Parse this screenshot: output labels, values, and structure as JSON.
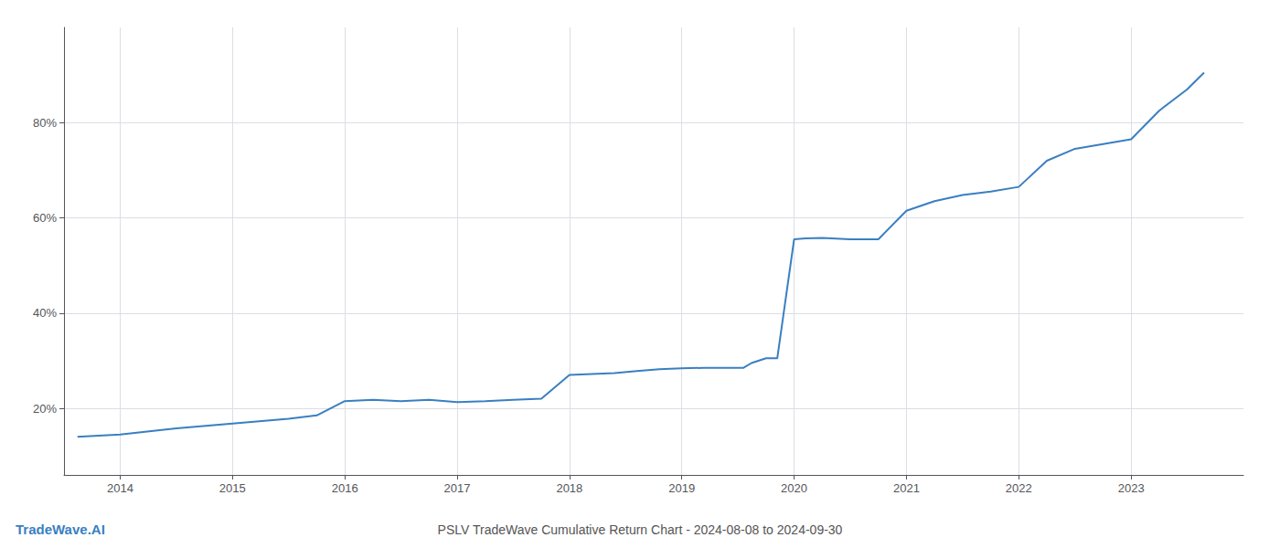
{
  "chart_data": {
    "type": "line",
    "title": "PSLV TradeWave Cumulative Return Chart - 2024-08-08 to 2024-09-30",
    "annotations": [
      "TradeWave.AI"
    ],
    "x": [
      2013.62,
      2014.0,
      2014.5,
      2015.0,
      2015.5,
      2015.75,
      2016.0,
      2016.25,
      2016.5,
      2016.75,
      2017.0,
      2017.25,
      2017.5,
      2017.75,
      2018.0,
      2018.2,
      2018.4,
      2018.6,
      2018.8,
      2019.0,
      2019.2,
      2019.4,
      2019.55,
      2019.62,
      2019.75,
      2019.85,
      2020.0,
      2020.1,
      2020.25,
      2020.5,
      2020.75,
      2021.0,
      2021.25,
      2021.5,
      2021.75,
      2022.0,
      2022.25,
      2022.5,
      2022.75,
      2023.0,
      2023.25,
      2023.5,
      2023.65
    ],
    "values": [
      0.14,
      0.145,
      0.158,
      0.168,
      0.178,
      0.185,
      0.215,
      0.218,
      0.215,
      0.218,
      0.213,
      0.215,
      0.218,
      0.22,
      0.27,
      0.272,
      0.274,
      0.278,
      0.282,
      0.284,
      0.285,
      0.285,
      0.285,
      0.295,
      0.305,
      0.305,
      0.555,
      0.557,
      0.558,
      0.555,
      0.555,
      0.615,
      0.635,
      0.648,
      0.655,
      0.665,
      0.72,
      0.745,
      0.755,
      0.765,
      0.825,
      0.87,
      0.905
    ],
    "color": "#3a7fc1",
    "xlim": [
      2013.5,
      2024.0
    ],
    "xticks": [
      2014,
      2015,
      2016,
      2017,
      2018,
      2019,
      2020,
      2021,
      2022,
      2023
    ],
    "ylim": [
      0.06,
      1.0
    ],
    "yticks": [
      {
        "value": 0.2,
        "label": "20%"
      },
      {
        "value": 0.4,
        "label": "40%"
      },
      {
        "value": 0.6,
        "label": "60%"
      },
      {
        "value": 0.8,
        "label": "80%"
      }
    ],
    "grid": true
  }
}
